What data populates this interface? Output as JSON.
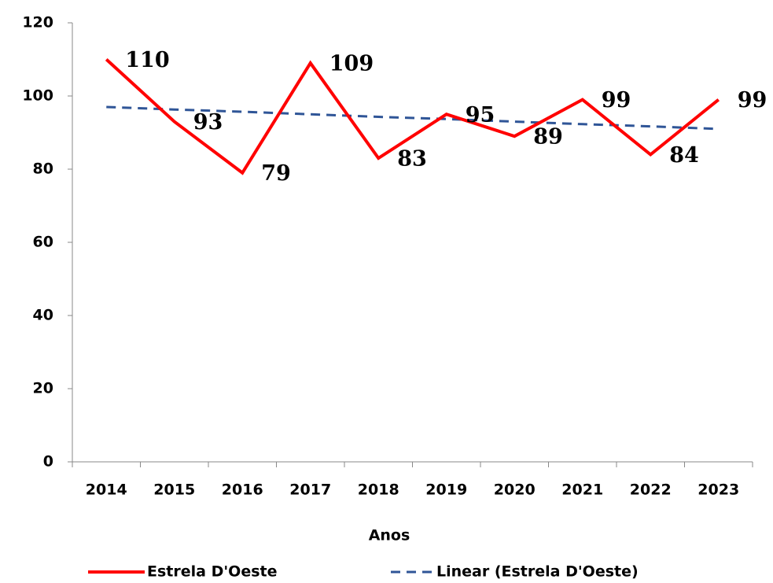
{
  "chart_data": {
    "type": "line",
    "x_label": "Anos",
    "categories": [
      "2014",
      "2015",
      "2016",
      "2017",
      "2018",
      "2019",
      "2020",
      "2021",
      "2022",
      "2023"
    ],
    "series": [
      {
        "name": "Estrela D'Oeste",
        "color": "#ff0000",
        "values": [
          110,
          93,
          79,
          109,
          83,
          95,
          89,
          99,
          84,
          99
        ]
      },
      {
        "name": "Linear (Estrela D'Oeste)",
        "color": "#2f5597",
        "dashed": true,
        "values": [
          97,
          96.3,
          95.7,
          95,
          94.3,
          93.7,
          93,
          92.3,
          91.7,
          91
        ]
      }
    ],
    "ylim": [
      0,
      120
    ],
    "yticks": [
      0,
      20,
      40,
      60,
      80,
      100,
      120
    ],
    "grid": false,
    "legend": "bottom"
  }
}
